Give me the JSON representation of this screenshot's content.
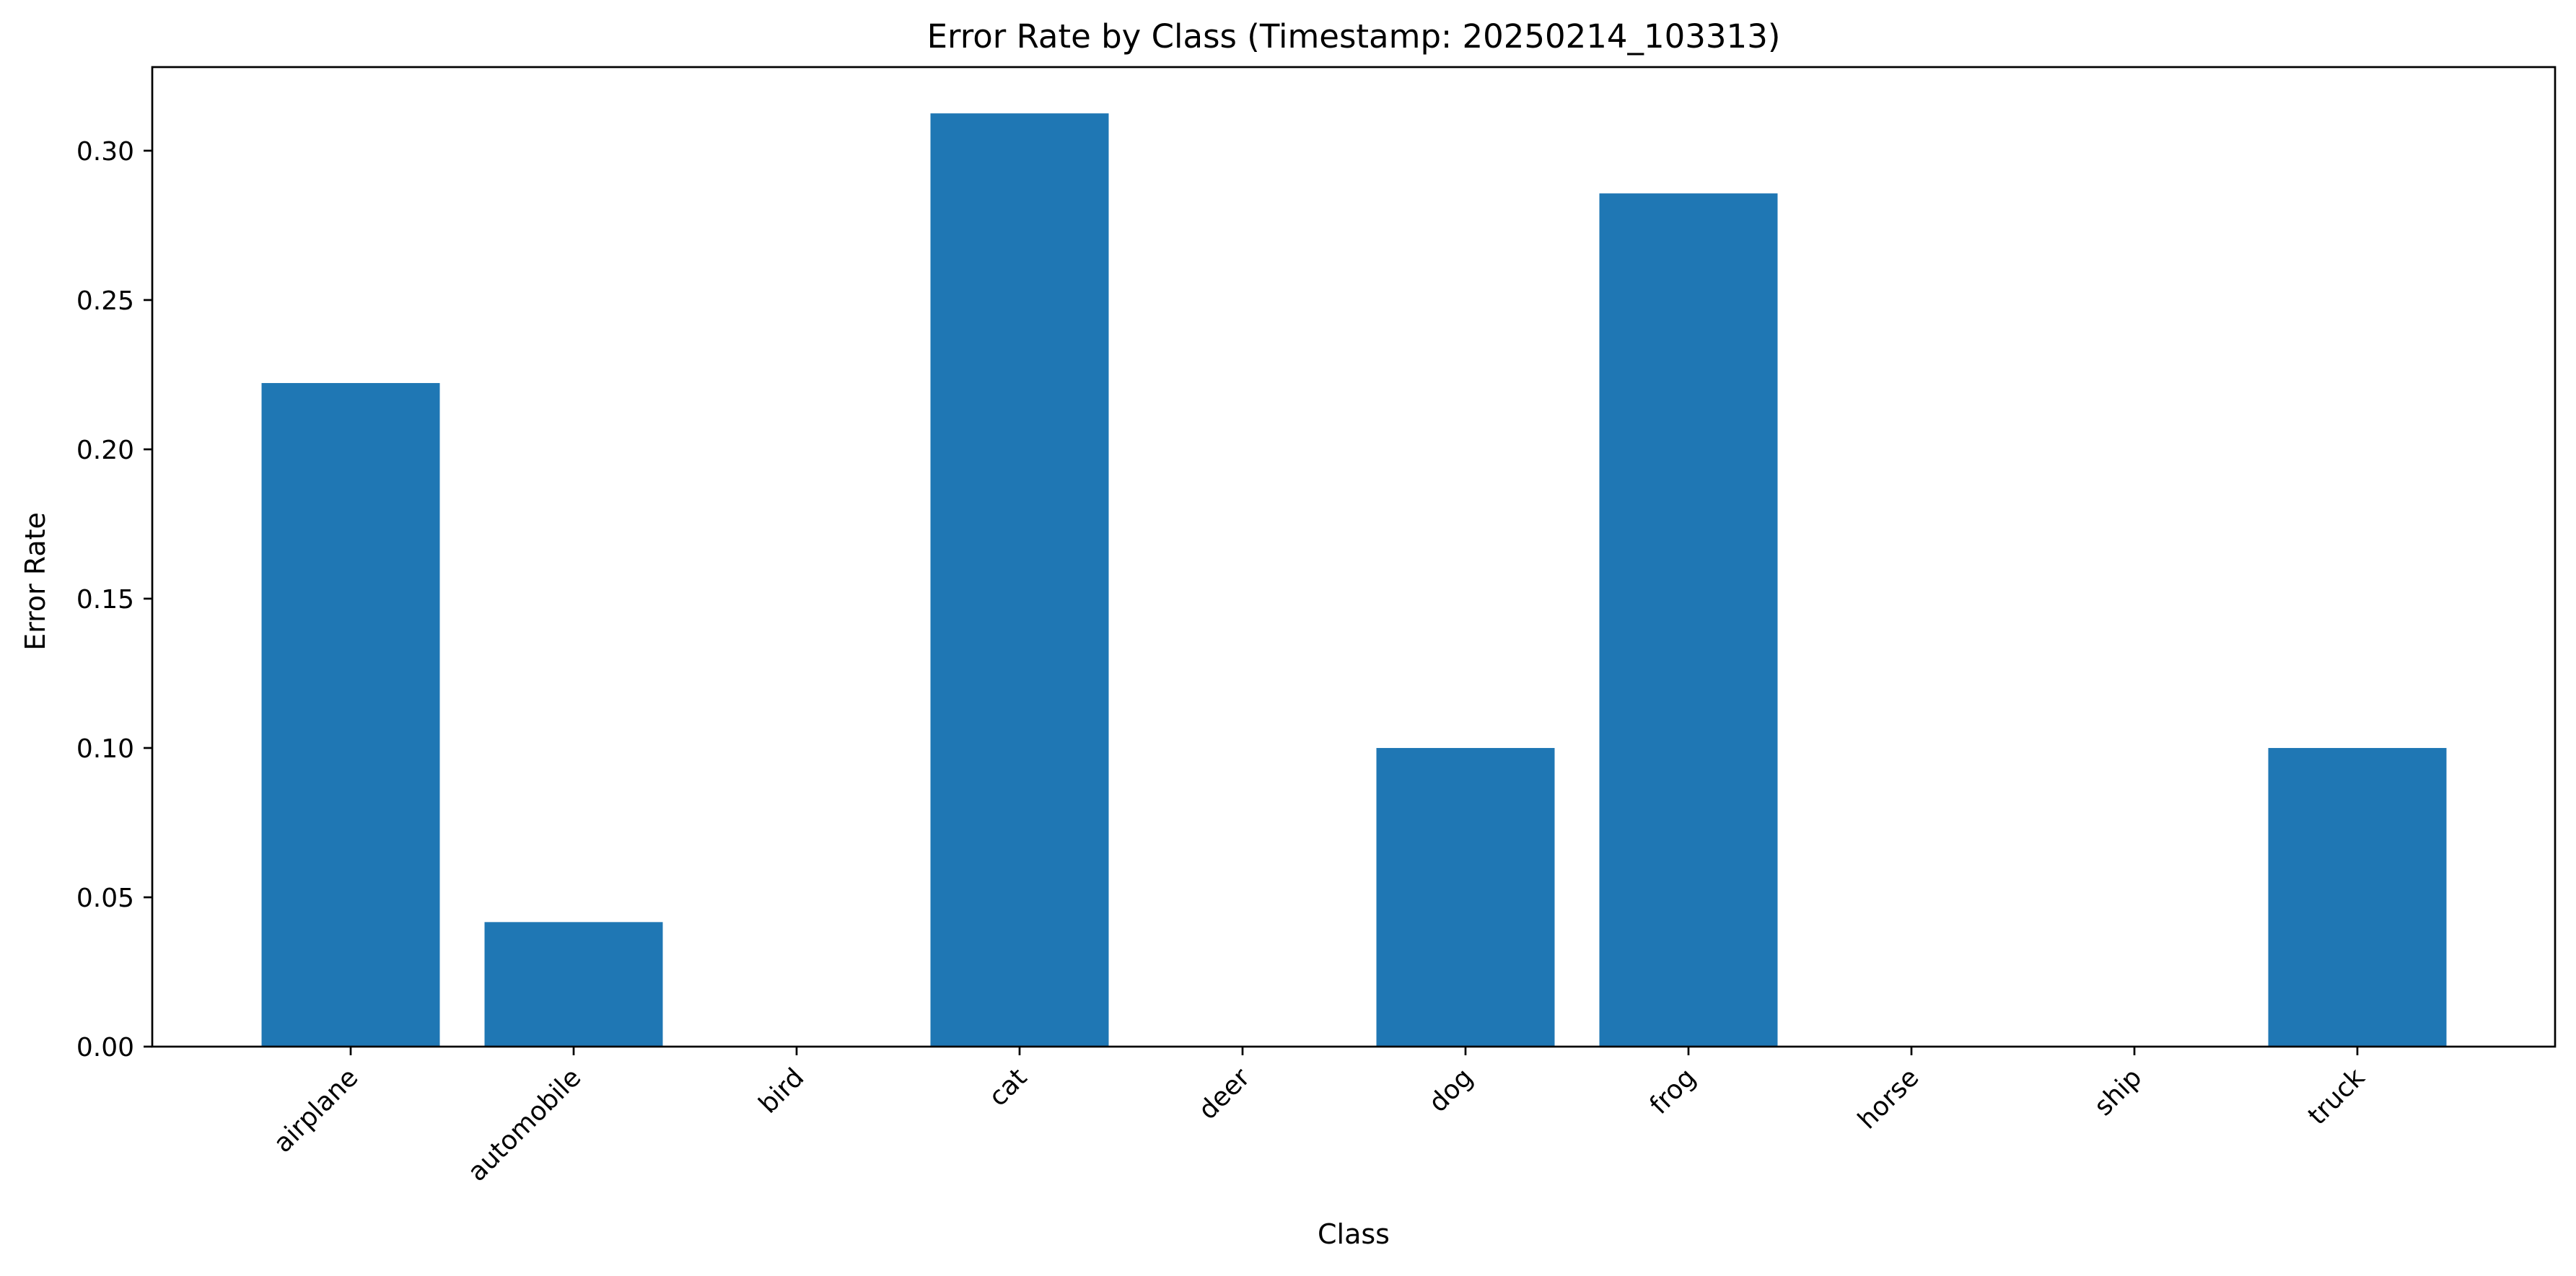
{
  "chart_data": {
    "type": "bar",
    "title": "Error Rate by Class (Timestamp: 20250214_103313)",
    "xlabel": "Class",
    "ylabel": "Error Rate",
    "categories": [
      "airplane",
      "automobile",
      "bird",
      "cat",
      "deer",
      "dog",
      "frog",
      "horse",
      "ship",
      "truck"
    ],
    "values": [
      0.2222,
      0.0417,
      0.0,
      0.3125,
      0.0,
      0.1,
      0.2857,
      0.0,
      0.0,
      0.1
    ],
    "ylim": [
      0,
      0.328
    ],
    "yticks": [
      0.0,
      0.05,
      0.1,
      0.15,
      0.2,
      0.25,
      0.3
    ],
    "ytick_labels": [
      "0.00",
      "0.05",
      "0.10",
      "0.15",
      "0.20",
      "0.25",
      "0.30"
    ],
    "grid": false,
    "legend": "none",
    "bar_color": "#1f77b4"
  }
}
